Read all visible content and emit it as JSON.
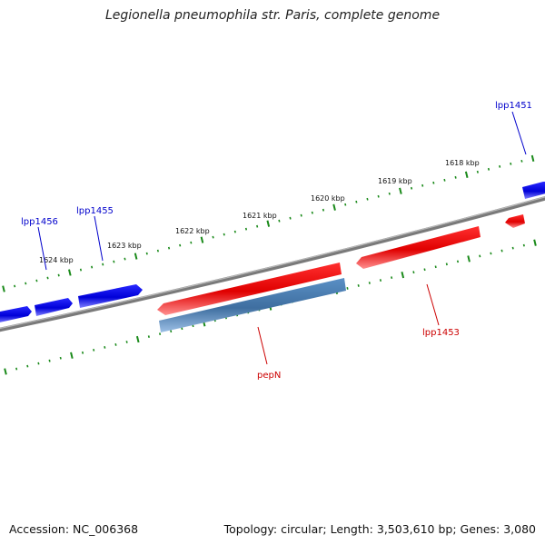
{
  "title": "Legionella pneumophila str. Paris, complete genome",
  "footer": {
    "accession": "Accession: NC_006368",
    "summary": "Topology: circular; Length: 3,503,610 bp; Genes: 3,080"
  },
  "colors": {
    "forward_gene": "#0000ee",
    "reverse_gene": "#ee0000",
    "selected_gene": "#4a7fb5",
    "backbone": "#808080",
    "tick": "#1a8a1a"
  },
  "ticks": [
    {
      "label": "1618 kbp"
    },
    {
      "label": "1619 kbp"
    },
    {
      "label": "1620 kbp"
    },
    {
      "label": "1621 kbp"
    },
    {
      "label": "1622 kbp"
    },
    {
      "label": "1623 kbp"
    },
    {
      "label": "1624 kbp"
    }
  ],
  "gene_labels": {
    "lpp1451": "lpp1451",
    "lpp1455": "lpp1455",
    "lpp1456": "lpp1456",
    "pepN": "pepN",
    "lpp1453": "lpp1453"
  }
}
